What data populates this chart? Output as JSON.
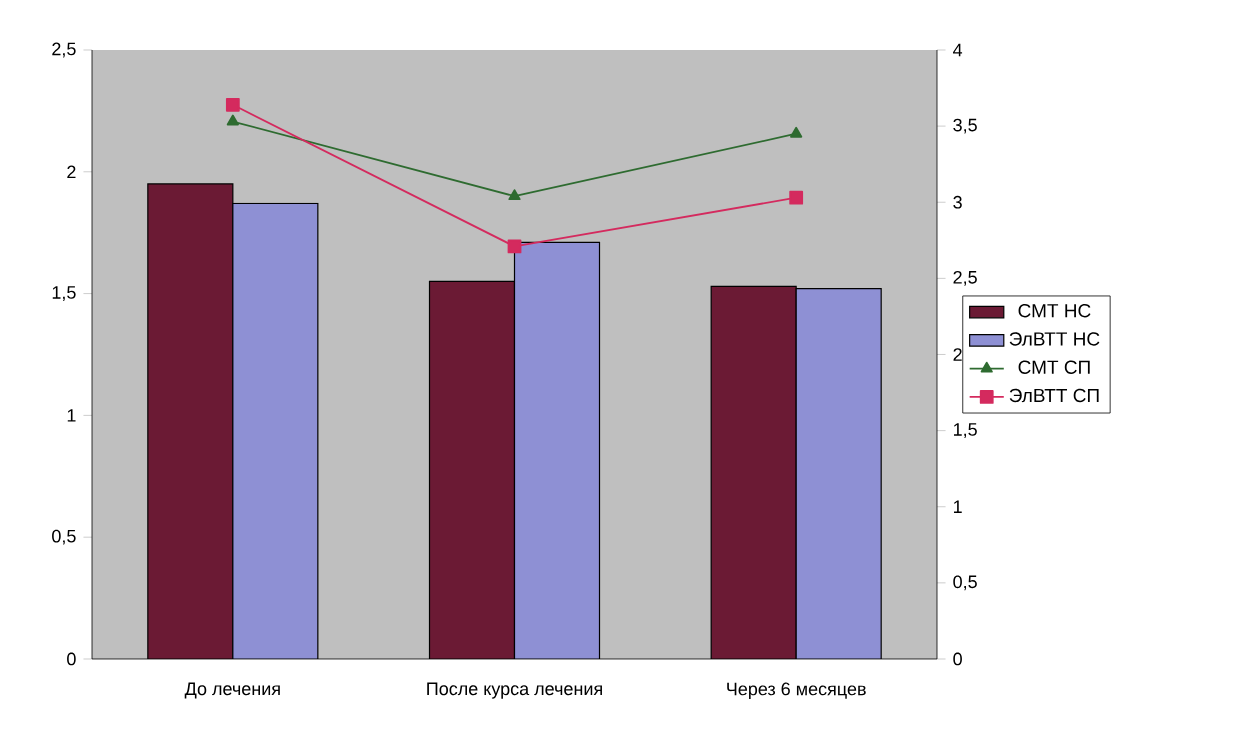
{
  "chart_data": {
    "type": "bar",
    "categories": [
      "До лечения",
      "После курса лечения",
      "Через 6 месяцев"
    ],
    "series": [
      {
        "name": "СМТ НС",
        "type": "bar",
        "color": "#6b1a34",
        "values": [
          1.95,
          1.55,
          1.53
        ]
      },
      {
        "name": "ЭлВТТ НС",
        "type": "bar",
        "color": "#8e90d4",
        "values": [
          1.87,
          1.71,
          1.52
        ]
      },
      {
        "name": "СМТ СП",
        "type": "line",
        "axis": "y2",
        "color": "#2e6b30",
        "marker": "triangle",
        "values": [
          3.53,
          3.04,
          3.45
        ]
      },
      {
        "name": "ЭлВТТ СП",
        "type": "line",
        "axis": "y2",
        "color": "#d42a5e",
        "marker": "square",
        "values": [
          3.64,
          2.71,
          3.03
        ]
      }
    ],
    "ylim": [
      0,
      2.5
    ],
    "yticks": [
      {
        "value": 0,
        "label": "0"
      },
      {
        "value": 0.5,
        "label": "0,5"
      },
      {
        "value": 1,
        "label": "1"
      },
      {
        "value": 1.5,
        "label": "1,5"
      },
      {
        "value": 2,
        "label": "2"
      },
      {
        "value": 2.5,
        "label": "2,5"
      }
    ],
    "y2lim": [
      0,
      4
    ],
    "y2ticks": [
      {
        "value": 0,
        "label": "0"
      },
      {
        "value": 0.5,
        "label": "0,5"
      },
      {
        "value": 1,
        "label": "1"
      },
      {
        "value": 1.5,
        "label": "1,5"
      },
      {
        "value": 2,
        "label": "2"
      },
      {
        "value": 2.5,
        "label": "2,5"
      },
      {
        "value": 3,
        "label": "3"
      },
      {
        "value": 3.5,
        "label": "3,5"
      },
      {
        "value": 4,
        "label": "4"
      }
    ],
    "legend": "right",
    "grid": false
  }
}
